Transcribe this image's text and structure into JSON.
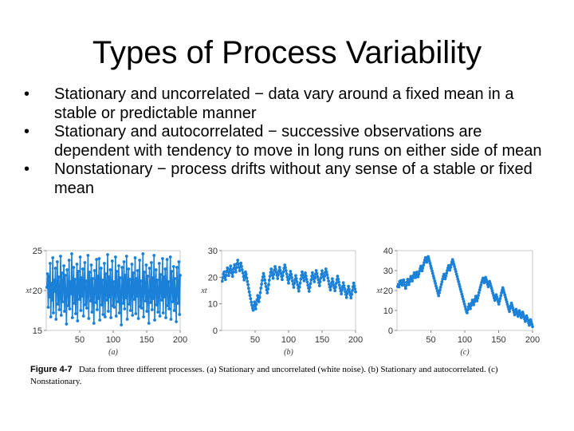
{
  "slide": {
    "title": "Types of Process Variability",
    "bullets": [
      {
        "marker": "•",
        "text": "Stationary and uncorrelated − data vary around a fixed mean in a stable or predictable manner"
      },
      {
        "marker": "•",
        "text": "Stationary and autocorrelated − successive observations are dependent with tendency to move in long runs on either side of mean"
      },
      {
        "marker": "•",
        "text": "Nonstationary − process drifts without any sense of a stable or fixed mean"
      }
    ]
  },
  "figure": {
    "caption_label": "Figure 4-7",
    "caption_text": "Data from three different processes. (a) Stationary and uncorrelated (white noise). (b) Stationary and autocorrelated. (c) Nonstationary.",
    "series_color": "#1a80d8"
  },
  "chart_data": [
    {
      "type": "line",
      "panel_label": "(a)",
      "ylabel": "xt",
      "ylim": [
        15,
        25
      ],
      "xlim": [
        0,
        200
      ],
      "y_ticks": [
        "25",
        "20",
        "15"
      ],
      "x_ticks": [
        "50",
        "100",
        "150",
        "200"
      ],
      "values": [
        20.4,
        22.1,
        17.9,
        21.8,
        19.2,
        23.4,
        16.7,
        20.9,
        18.8,
        24.1,
        17.2,
        21.3,
        19.9,
        22.8,
        16.4,
        20.1,
        23.6,
        18.3,
        21.7,
        17.6,
        19.5,
        24.3,
        16.9,
        22.2,
        18.6,
        20.7,
        23.1,
        17.4,
        21.9,
        19.1,
        15.8,
        22.6,
        20.3,
        18.1,
        23.8,
        17.7,
        21.1,
        19.6,
        24.6,
        16.6,
        20.5,
        22.9,
        18.4,
        21.4,
        17.1,
        19.8,
        23.3,
        16.2,
        22.4,
        20.2,
        18.9,
        24.2,
        17.5,
        21.6,
        19.3,
        22.7,
        16.8,
        20.8,
        23.5,
        18.2,
        21.2,
        17.8,
        19.7,
        24.4,
        16.5,
        22.3,
        20.6,
        18.7,
        23.2,
        17.3,
        21.5,
        19.4,
        15.9,
        22.5,
        20.4,
        18.5,
        23.9,
        17.6,
        21.8,
        19.0,
        24.0,
        16.3,
        20.9,
        22.8,
        18.2,
        21.3,
        17.0,
        19.9,
        23.4,
        16.7,
        22.1,
        20.1,
        18.8,
        24.5,
        17.4,
        21.7,
        19.2,
        22.6,
        16.6,
        20.7,
        23.7,
        18.1,
        21.1,
        17.9,
        19.6,
        24.2,
        16.8,
        22.4,
        20.5,
        18.6,
        23.1,
        17.2,
        21.6,
        19.5,
        15.7,
        22.9,
        20.2,
        18.4,
        23.6,
        17.7,
        21.9,
        19.1,
        24.3,
        16.4,
        20.6,
        22.7,
        18.3,
        21.4,
        17.5,
        19.8,
        23.3,
        16.9,
        22.2,
        20.3,
        18.9,
        24.1,
        17.1,
        21.5,
        19.3,
        22.5,
        16.5,
        20.8,
        23.8,
        18.0,
        21.2,
        17.8,
        19.7,
        24.6,
        16.7,
        22.3,
        20.4,
        18.7,
        23.2,
        17.4,
        21.8,
        19.4,
        15.9,
        22.8,
        20.0,
        18.5,
        23.5,
        17.6,
        21.6,
        19.0,
        24.4,
        16.3,
        20.9,
        22.6,
        18.2,
        21.3,
        17.3,
        19.9,
        23.4,
        16.8,
        22.0,
        20.2,
        18.8,
        24.0,
        17.2,
        21.7,
        19.2,
        22.7,
        16.6,
        20.5,
        23.9,
        18.1,
        21.1,
        17.7,
        19.6,
        24.2,
        16.4,
        22.4,
        20.6,
        18.6,
        23.0,
        17.5,
        21.5,
        19.5,
        16.1,
        22.9,
        20.3,
        18.4,
        23.6,
        17.0,
        21.9
      ]
    },
    {
      "type": "line",
      "panel_label": "(b)",
      "ylabel": "xt",
      "ylim": [
        0,
        30
      ],
      "xlim": [
        0,
        200
      ],
      "y_ticks": [
        "30",
        "20",
        "10",
        "0"
      ],
      "x_ticks": [
        "50",
        "100",
        "150",
        "200"
      ],
      "values": [
        18.5,
        19.8,
        21.2,
        22.0,
        20.4,
        19.1,
        20.7,
        22.3,
        23.5,
        22.1,
        20.6,
        21.8,
        23.0,
        24.2,
        22.8,
        21.5,
        20.3,
        21.9,
        23.4,
        24.7,
        23.2,
        22.0,
        23.6,
        25.1,
        26.4,
        25.0,
        23.7,
        22.4,
        23.9,
        25.3,
        24.1,
        22.8,
        21.6,
        20.2,
        19.0,
        20.5,
        22.0,
        21.1,
        19.7,
        18.4,
        17.2,
        15.8,
        14.5,
        13.2,
        11.9,
        10.6,
        9.5,
        8.4,
        7.6,
        9.1,
        10.7,
        9.4,
        8.1,
        9.8,
        11.5,
        13.1,
        12.0,
        10.8,
        12.4,
        14.2,
        15.9,
        17.4,
        18.8,
        20.1,
        21.4,
        20.3,
        19.0,
        17.7,
        16.5,
        15.2,
        14.1,
        15.6,
        17.2,
        18.9,
        20.4,
        21.8,
        23.1,
        22.0,
        20.8,
        19.6,
        21.1,
        22.7,
        24.0,
        23.0,
        21.8,
        20.7,
        19.5,
        20.9,
        22.4,
        23.7,
        22.6,
        21.5,
        20.3,
        19.1,
        20.6,
        22.0,
        23.4,
        24.6,
        23.6,
        22.5,
        21.3,
        20.1,
        19.0,
        17.8,
        19.3,
        20.8,
        22.2,
        21.1,
        19.9,
        18.6,
        17.4,
        16.2,
        17.7,
        19.2,
        20.6,
        19.5,
        18.3,
        17.1,
        15.9,
        14.8,
        16.3,
        17.8,
        19.3,
        20.7,
        22.0,
        21.0,
        19.8,
        18.7,
        20.2,
        21.6,
        20.5,
        19.3,
        18.2,
        17.0,
        15.9,
        14.7,
        16.2,
        17.6,
        19.0,
        20.4,
        21.7,
        20.6,
        19.4,
        18.3,
        19.7,
        21.2,
        22.5,
        21.4,
        20.2,
        19.1,
        18.0,
        16.8,
        18.3,
        19.7,
        21.1,
        22.4,
        21.3,
        20.1,
        19.0,
        20.4,
        21.8,
        23.1,
        22.0,
        20.9,
        19.7,
        18.6,
        17.4,
        16.3,
        15.2,
        16.6,
        18.0,
        19.4,
        18.3,
        17.1,
        16.0,
        14.9,
        16.3,
        17.7,
        19.1,
        20.4,
        19.3,
        18.2,
        17.0,
        15.9,
        14.8,
        13.7,
        15.1,
        16.5,
        17.9,
        16.8,
        15.7,
        14.6,
        13.5,
        12.4,
        13.8,
        15.2,
        16.6,
        15.5,
        14.4,
        13.3,
        12.2,
        13.6,
        15.0,
        16.4,
        17.8,
        16.7,
        15.6,
        14.5
      ]
    },
    {
      "type": "line",
      "panel_label": "(c)",
      "ylabel": "xt",
      "ylim": [
        0,
        40
      ],
      "xlim": [
        0,
        200
      ],
      "y_ticks": [
        "40",
        "30",
        "20",
        "10",
        "0"
      ],
      "x_ticks": [
        "50",
        "100",
        "150",
        "200"
      ],
      "values": [
        22.0,
        23.1,
        21.8,
        24.5,
        23.2,
        25.0,
        24.1,
        22.7,
        23.9,
        25.3,
        24.0,
        22.5,
        21.1,
        22.6,
        24.2,
        25.6,
        24.3,
        23.0,
        24.4,
        25.9,
        27.1,
        26.0,
        24.8,
        26.2,
        27.6,
        28.9,
        27.7,
        26.5,
        27.9,
        29.2,
        28.1,
        26.9,
        28.3,
        29.7,
        31.0,
        32.2,
        31.1,
        29.9,
        31.3,
        32.7,
        34.0,
        35.3,
        36.5,
        35.4,
        34.2,
        35.6,
        37.0,
        36.0,
        34.8,
        33.6,
        32.3,
        31.1,
        29.8,
        28.6,
        27.3,
        26.1,
        24.8,
        23.6,
        22.3,
        21.1,
        19.8,
        18.6,
        17.4,
        18.9,
        20.3,
        21.7,
        23.1,
        24.4,
        25.7,
        27.0,
        28.2,
        27.1,
        25.9,
        27.3,
        28.7,
        30.0,
        31.3,
        32.5,
        31.4,
        30.2,
        31.6,
        33.0,
        34.3,
        35.5,
        34.4,
        33.2,
        32.0,
        30.7,
        29.5,
        28.2,
        27.0,
        25.7,
        24.5,
        23.2,
        22.0,
        20.7,
        19.5,
        18.2,
        17.0,
        15.7,
        14.5,
        13.2,
        12.0,
        10.7,
        9.5,
        8.8,
        10.3,
        11.8,
        13.2,
        12.1,
        10.9,
        12.4,
        13.8,
        15.2,
        14.1,
        12.9,
        14.3,
        15.7,
        17.1,
        16.0,
        14.8,
        16.2,
        17.6,
        19.0,
        20.3,
        21.6,
        22.8,
        24.0,
        25.1,
        26.2,
        25.1,
        23.9,
        25.3,
        26.6,
        25.5,
        24.3,
        23.1,
        21.9,
        23.3,
        24.6,
        23.5,
        22.3,
        21.1,
        19.9,
        18.7,
        17.5,
        16.3,
        15.1,
        16.5,
        17.9,
        16.8,
        15.6,
        14.4,
        13.2,
        14.6,
        16.0,
        17.4,
        18.8,
        20.1,
        21.4,
        20.3,
        19.1,
        17.9,
        16.7,
        15.5,
        14.3,
        13.1,
        11.9,
        10.7,
        9.5,
        10.9,
        12.3,
        13.7,
        12.6,
        11.4,
        10.2,
        9.0,
        7.8,
        9.2,
        10.6,
        9.5,
        8.3,
        7.1,
        8.5,
        9.9,
        8.8,
        7.6,
        6.4,
        7.8,
        9.2,
        8.1,
        6.9,
        5.7,
        4.5,
        5.9,
        7.3,
        6.2,
        5.0,
        3.8,
        2.6,
        4.0,
        5.4,
        4.3,
        3.1,
        1.9
      ]
    }
  ]
}
